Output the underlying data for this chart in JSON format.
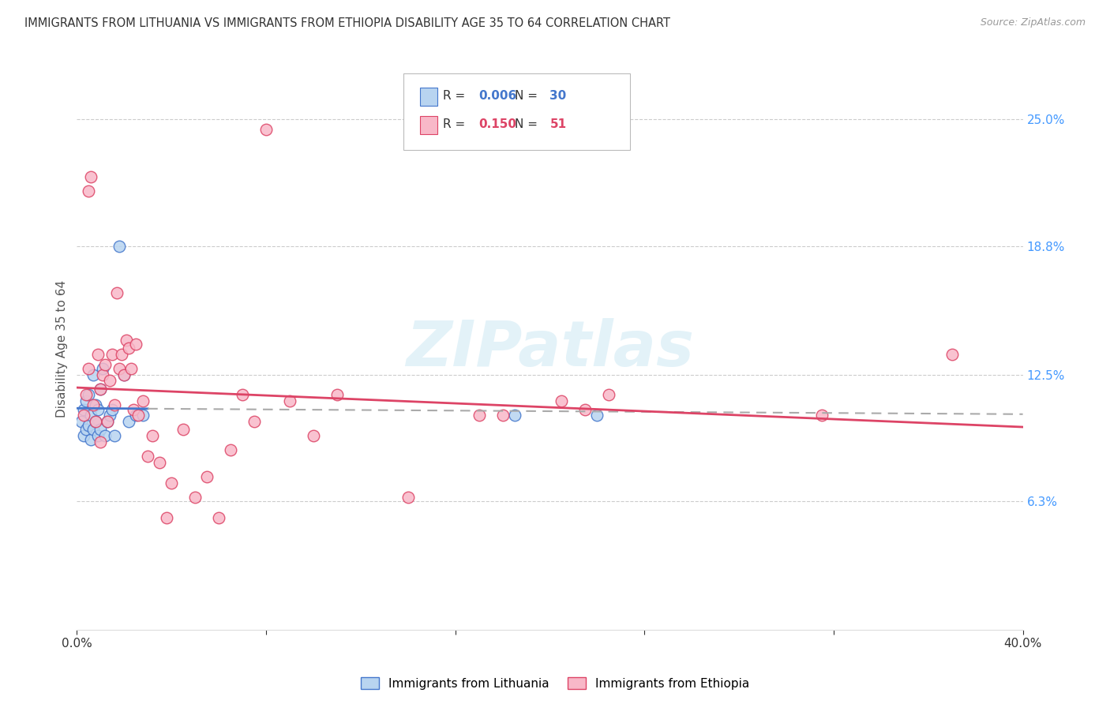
{
  "title": "IMMIGRANTS FROM LITHUANIA VS IMMIGRANTS FROM ETHIOPIA DISABILITY AGE 35 TO 64 CORRELATION CHART",
  "source": "Source: ZipAtlas.com",
  "ylabel": "Disability Age 35 to 64",
  "ytick_values": [
    6.3,
    12.5,
    18.8,
    25.0
  ],
  "xlim": [
    0.0,
    40.0
  ],
  "ylim": [
    0.0,
    27.5
  ],
  "color_lithuania_fill": "#b8d4f0",
  "color_ethiopia_fill": "#f8b8c8",
  "color_line_lithuania": "#4477cc",
  "color_line_ethiopia": "#dd4466",
  "watermark_text": "ZIPatlas",
  "r_lithuania": "0.006",
  "n_lithuania": "30",
  "r_ethiopia": "0.150",
  "n_ethiopia": "51",
  "lithuania_x": [
    0.2,
    0.3,
    0.3,
    0.4,
    0.4,
    0.5,
    0.5,
    0.6,
    0.6,
    0.7,
    0.7,
    0.8,
    0.8,
    0.9,
    0.9,
    1.0,
    1.0,
    1.1,
    1.2,
    1.3,
    1.4,
    1.5,
    1.6,
    1.8,
    2.0,
    2.2,
    2.5,
    2.8,
    18.5,
    22.0
  ],
  "lithuania_y": [
    10.2,
    9.5,
    10.8,
    9.8,
    11.2,
    10.0,
    11.5,
    9.3,
    10.5,
    9.8,
    12.5,
    10.2,
    11.0,
    9.5,
    10.8,
    9.8,
    11.8,
    12.8,
    9.5,
    10.2,
    10.5,
    10.8,
    9.5,
    18.8,
    12.5,
    10.2,
    10.5,
    10.5,
    10.5,
    10.5
  ],
  "ethiopia_x": [
    0.3,
    0.4,
    0.5,
    0.5,
    0.6,
    0.7,
    0.8,
    0.9,
    1.0,
    1.0,
    1.1,
    1.2,
    1.3,
    1.4,
    1.5,
    1.6,
    1.7,
    1.8,
    1.9,
    2.0,
    2.1,
    2.2,
    2.3,
    2.4,
    2.5,
    2.6,
    2.8,
    3.0,
    3.2,
    3.5,
    3.8,
    4.0,
    4.5,
    5.0,
    5.5,
    6.0,
    6.5,
    7.0,
    7.5,
    8.0,
    9.0,
    10.0,
    11.0,
    14.0,
    17.0,
    20.5,
    22.5,
    31.5,
    37.0,
    21.5,
    18.0
  ],
  "ethiopia_y": [
    10.5,
    11.5,
    12.8,
    21.5,
    22.2,
    11.0,
    10.2,
    13.5,
    9.2,
    11.8,
    12.5,
    13.0,
    10.2,
    12.2,
    13.5,
    11.0,
    16.5,
    12.8,
    13.5,
    12.5,
    14.2,
    13.8,
    12.8,
    10.8,
    14.0,
    10.5,
    11.2,
    8.5,
    9.5,
    8.2,
    5.5,
    7.2,
    9.8,
    6.5,
    7.5,
    5.5,
    8.8,
    11.5,
    10.2,
    24.5,
    11.2,
    9.5,
    11.5,
    6.5,
    10.5,
    11.2,
    11.5,
    10.5,
    13.5,
    10.8,
    10.5
  ]
}
